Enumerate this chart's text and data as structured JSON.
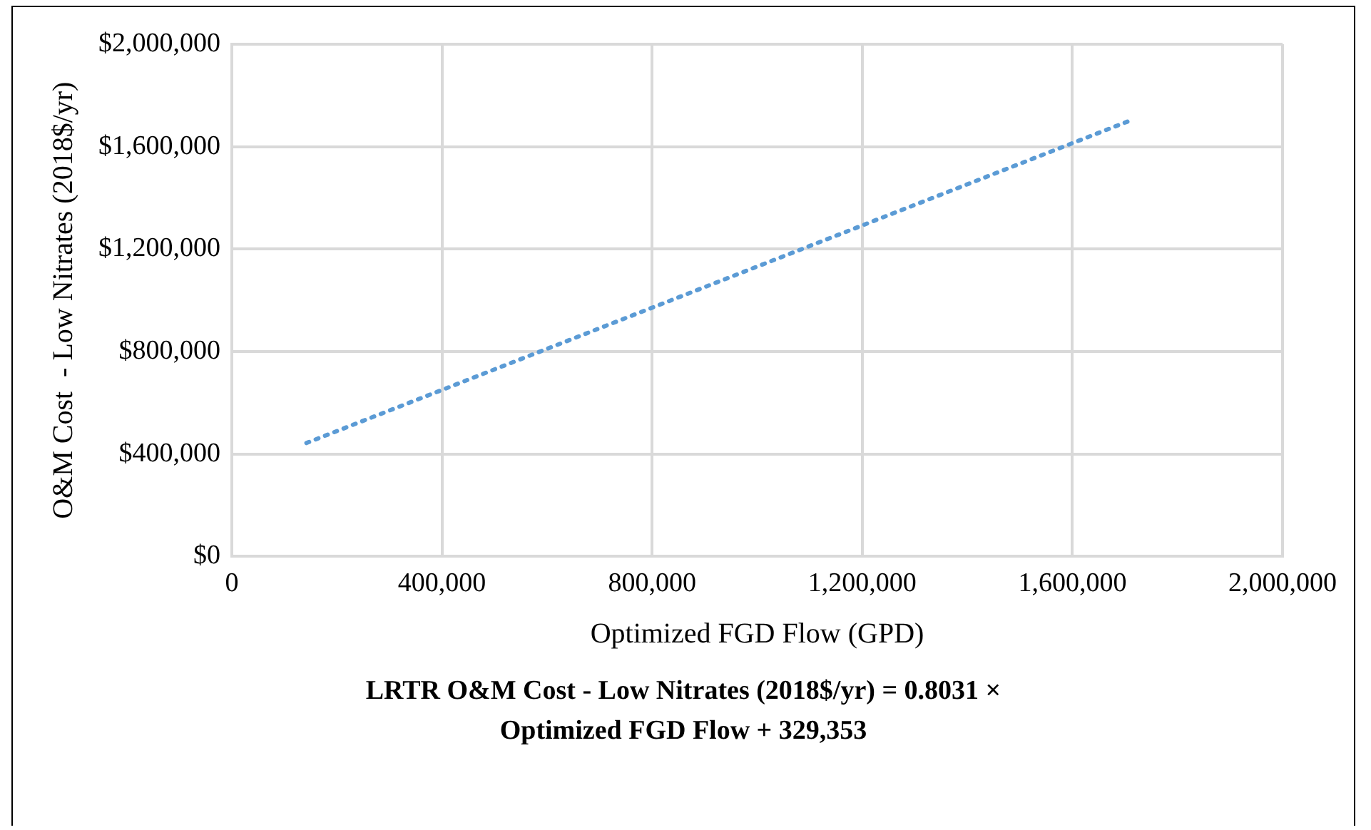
{
  "chart_data": {
    "type": "line",
    "xlabel": "Optimized FGD Flow (GPD)",
    "ylabel": "O&M Cost  - Low Nitrates (2018$/yr)",
    "series": [
      {
        "x": [
          142000,
          1715000
        ],
        "values": [
          443000,
          1706000
        ],
        "color": "#5b9bd5"
      }
    ],
    "xlim": [
      0,
      2000000
    ],
    "xticks": [
      {
        "value": 0,
        "label": "0"
      },
      {
        "value": 400000,
        "label": "400,000"
      },
      {
        "value": 800000,
        "label": "800,000"
      },
      {
        "value": 1200000,
        "label": "1,200,000"
      },
      {
        "value": 1600000,
        "label": "1,600,000"
      },
      {
        "value": 2000000,
        "label": "2,000,000"
      }
    ],
    "ylim": [
      0,
      2000000
    ],
    "yticks": [
      {
        "value": 0,
        "label": "$0"
      },
      {
        "value": 400000,
        "label": "$400,000"
      },
      {
        "value": 800000,
        "label": "$800,000"
      },
      {
        "value": 1200000,
        "label": "$1,200,000"
      },
      {
        "value": 1600000,
        "label": "$1,600,000"
      },
      {
        "value": 2000000,
        "label": "$2,000,000"
      }
    ],
    "grid": true,
    "legend": false,
    "marker": "none",
    "line_style": "dotted",
    "annotations": [
      "LRTR O&M Cost - Low Nitrates (2018$/yr) = 0.8031 × Optimized  FGD Flow + 329,353"
    ]
  }
}
